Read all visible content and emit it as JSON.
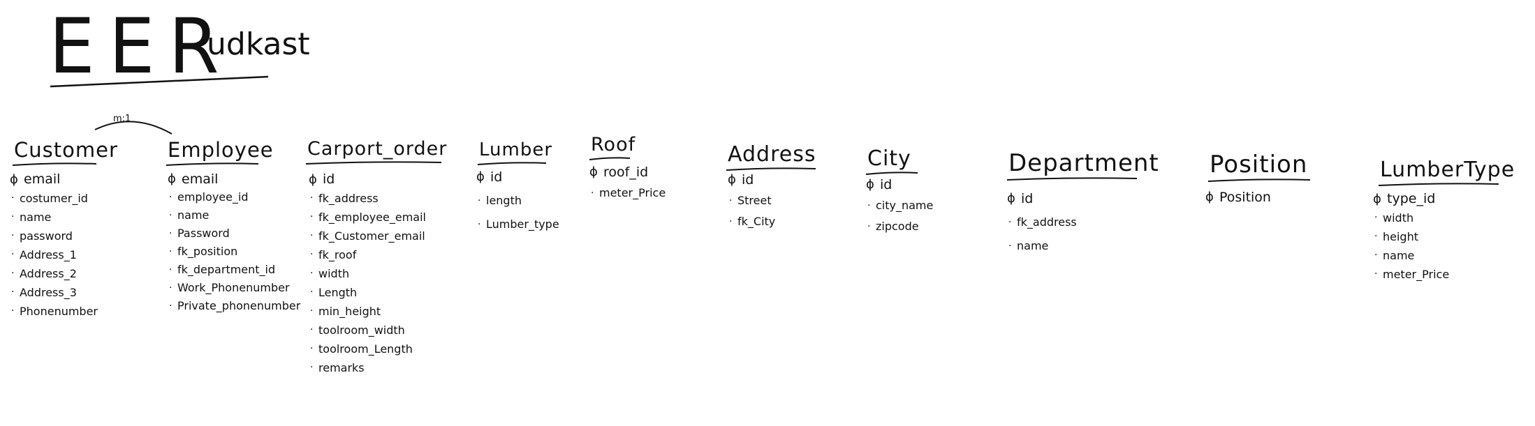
{
  "title": {
    "main": "EER",
    "sub": "udkast"
  },
  "relationship": {
    "label": "m:1"
  },
  "bullets": {
    "pk": "ɸ",
    "attr": "·"
  },
  "entities": [
    {
      "name": "Customer",
      "attributes": [
        {
          "text": "email",
          "pk": true
        },
        {
          "text": "costumer_id",
          "pk": false
        },
        {
          "text": "name",
          "pk": false
        },
        {
          "text": "password",
          "pk": false
        },
        {
          "text": "Address_1",
          "pk": false
        },
        {
          "text": "Address_2",
          "pk": false
        },
        {
          "text": "Address_3",
          "pk": false
        },
        {
          "text": "Phonenumber",
          "pk": false
        }
      ]
    },
    {
      "name": "Employee",
      "attributes": [
        {
          "text": "email",
          "pk": true
        },
        {
          "text": "employee_id",
          "pk": false
        },
        {
          "text": "name",
          "pk": false
        },
        {
          "text": "Password",
          "pk": false
        },
        {
          "text": "fk_position",
          "pk": false
        },
        {
          "text": "fk_department_id",
          "pk": false
        },
        {
          "text": "Work_Phonenumber",
          "pk": false
        },
        {
          "text": "Private_phonenumber",
          "pk": false
        }
      ]
    },
    {
      "name": "Carport_order",
      "attributes": [
        {
          "text": "id",
          "pk": true
        },
        {
          "text": "fk_address",
          "pk": false
        },
        {
          "text": "fk_employee_email",
          "pk": false
        },
        {
          "text": "fk_Customer_email",
          "pk": false
        },
        {
          "text": "fk_roof",
          "pk": false
        },
        {
          "text": "width",
          "pk": false
        },
        {
          "text": "Length",
          "pk": false
        },
        {
          "text": "min_height",
          "pk": false
        },
        {
          "text": "toolroom_width",
          "pk": false
        },
        {
          "text": "toolroom_Length",
          "pk": false
        },
        {
          "text": "remarks",
          "pk": false
        }
      ]
    },
    {
      "name": "Lumber",
      "attributes": [
        {
          "text": "id",
          "pk": true
        },
        {
          "text": "length",
          "pk": false
        },
        {
          "text": "Lumber_type",
          "pk": false
        }
      ]
    },
    {
      "name": "Roof",
      "attributes": [
        {
          "text": "roof_id",
          "pk": true
        },
        {
          "text": "meter_Price",
          "pk": false
        }
      ]
    },
    {
      "name": "Address",
      "attributes": [
        {
          "text": "id",
          "pk": true
        },
        {
          "text": "Street",
          "pk": false
        },
        {
          "text": "fk_City",
          "pk": false
        }
      ]
    },
    {
      "name": "City",
      "attributes": [
        {
          "text": "id",
          "pk": true
        },
        {
          "text": "city_name",
          "pk": false
        },
        {
          "text": "zipcode",
          "pk": false
        }
      ]
    },
    {
      "name": "Department",
      "attributes": [
        {
          "text": "id",
          "pk": true
        },
        {
          "text": "fk_address",
          "pk": false
        },
        {
          "text": "name",
          "pk": false
        }
      ]
    },
    {
      "name": "Position",
      "attributes": [
        {
          "text": "Position",
          "pk": true
        }
      ]
    },
    {
      "name": "LumberType",
      "attributes": [
        {
          "text": "type_id",
          "pk": true
        },
        {
          "text": "width",
          "pk": false
        },
        {
          "text": "height",
          "pk": false
        },
        {
          "text": "name",
          "pk": false
        },
        {
          "text": "meter_Price",
          "pk": false
        }
      ]
    }
  ]
}
